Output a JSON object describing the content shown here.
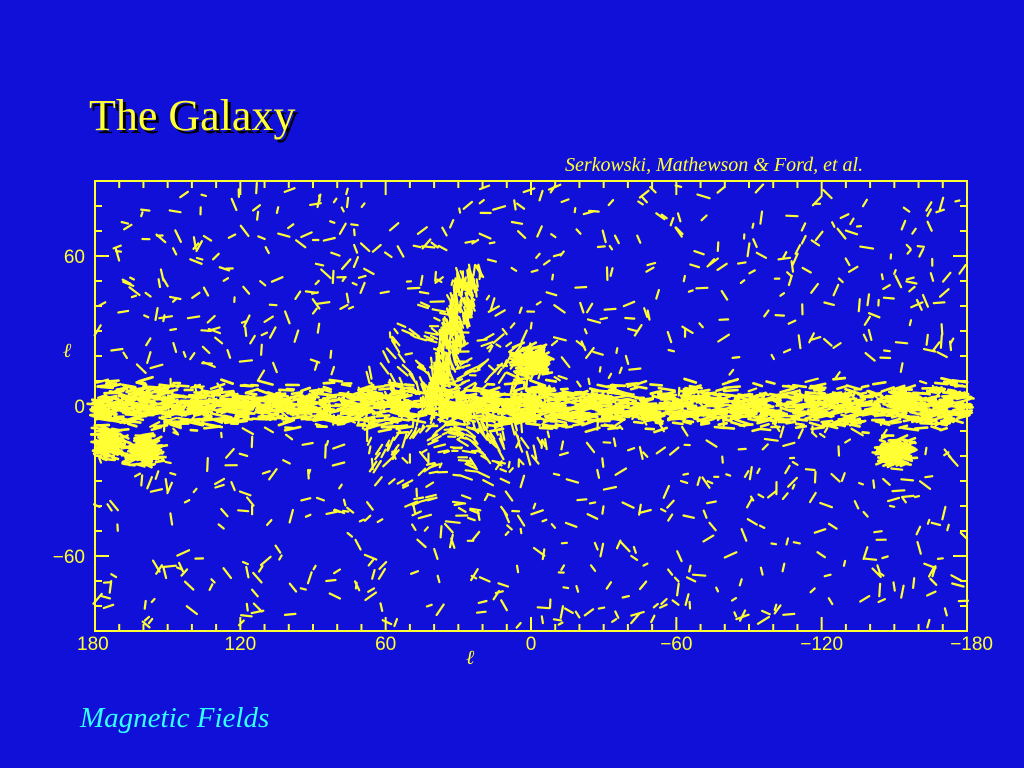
{
  "slide": {
    "title": "The Galaxy",
    "credit": "Serkowski, Mathewson & Ford, et al.",
    "footer": "Magnetic Fields"
  },
  "colors": {
    "background": "#1010d8",
    "plot": "#ffff33",
    "footer": "#33ffff"
  },
  "chart_data": {
    "type": "scatter",
    "title": "",
    "xlabel": "ℓ",
    "ylabel": "ℓ",
    "xlim": [
      180,
      -180
    ],
    "ylim": [
      -90,
      90
    ],
    "x_ticks": [
      {
        "value": 180,
        "label": "180"
      },
      {
        "value": 120,
        "label": "120"
      },
      {
        "value": 60,
        "label": "60"
      },
      {
        "value": 0,
        "label": "0"
      },
      {
        "value": -60,
        "label": "−60"
      },
      {
        "value": -120,
        "label": "−120"
      },
      {
        "value": -180,
        "label": "−180"
      }
    ],
    "y_ticks": [
      {
        "value": 60,
        "label": "60"
      },
      {
        "value": 0,
        "label": "0"
      },
      {
        "value": -60,
        "label": "−60"
      }
    ],
    "grid": false,
    "marker": "polarization-vector segments",
    "features": [
      {
        "name": "galactic-plane-band",
        "x_range": [
          180,
          -180
        ],
        "y_center": 0,
        "y_halfwidth": 6
      },
      {
        "name": "north-polar-spur",
        "x_range": [
          40,
          25
        ],
        "y_range": [
          0,
          55
        ]
      },
      {
        "name": "cloud-near-0",
        "x": 0,
        "y": 18
      },
      {
        "name": "cloud-near-175",
        "x": 175,
        "y": -15
      },
      {
        "name": "cloud-near-160",
        "x": 160,
        "y": -18
      },
      {
        "name": "cloud-near-minus150",
        "x": -150,
        "y": -18
      }
    ]
  }
}
